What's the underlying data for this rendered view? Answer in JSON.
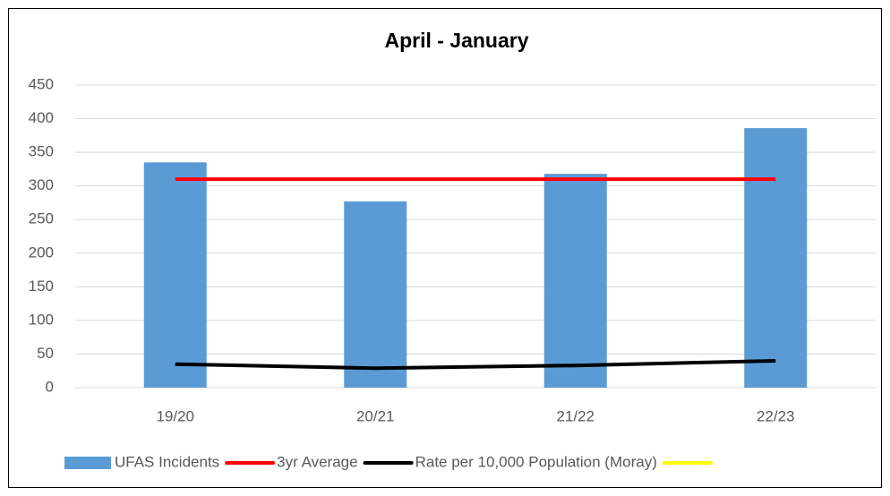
{
  "chart_data": {
    "type": "combo",
    "title": "April - January",
    "categories": [
      "19/20",
      "20/21",
      "21/22",
      "22/23"
    ],
    "series": [
      {
        "name": "UFAS Incidents",
        "type": "bar",
        "color": "#5b9bd5",
        "values": [
          335,
          277,
          318,
          386
        ]
      },
      {
        "name": "3yr Average",
        "type": "line",
        "color": "#ff0000",
        "values": [
          310,
          310,
          310,
          310
        ]
      },
      {
        "name": "Rate per 10,000 Population (Moray)",
        "type": "line",
        "color": "#000000",
        "values": [
          35,
          29,
          33,
          40
        ]
      },
      {
        "type": "line",
        "color": "#ffff00",
        "values": [
          null,
          null,
          null,
          null
        ]
      }
    ],
    "ylim": [
      0,
      450
    ],
    "yticks": [
      0,
      50,
      100,
      150,
      200,
      250,
      300,
      350,
      400,
      450
    ],
    "grid": true,
    "legend": "bottom"
  }
}
